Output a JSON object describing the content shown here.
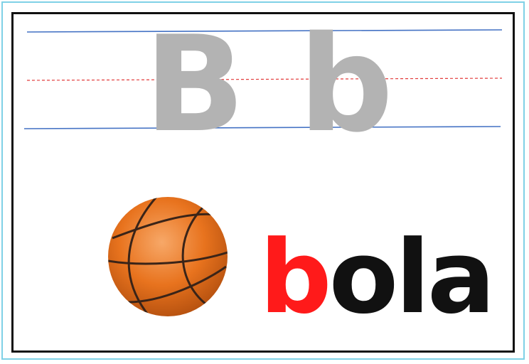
{
  "letters": {
    "uppercase": "B",
    "lowercase": "b"
  },
  "word": {
    "first_letter": "b",
    "rest": "ola"
  },
  "illustration": {
    "icon": "basketball-icon"
  },
  "colors": {
    "frame": "#111111",
    "outer_frame": "#7fd1e6",
    "guide_line": "#4472c4",
    "midline": "#e23b3b",
    "tracing_letter": "#b3b3b3",
    "highlight_letter": "#ff1a1a",
    "word_text": "#111111",
    "ball": "#e8731e"
  }
}
